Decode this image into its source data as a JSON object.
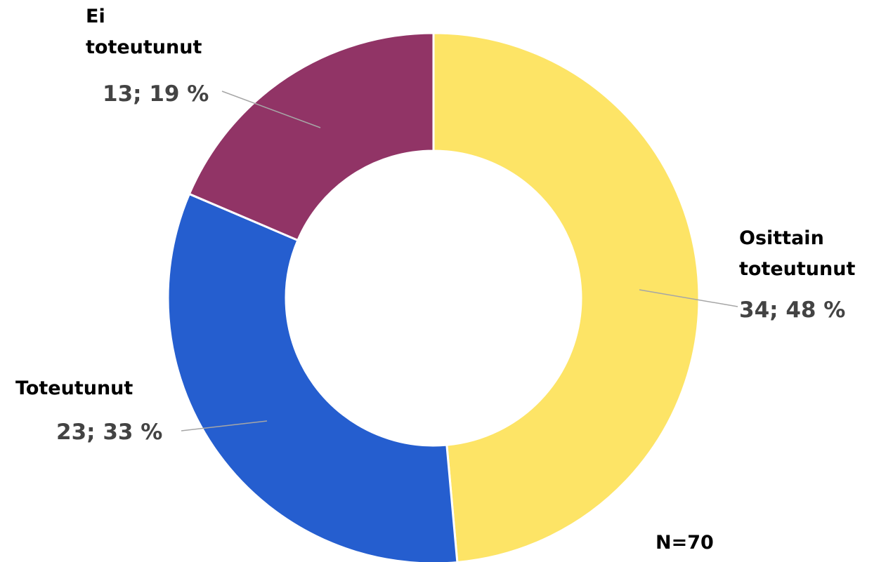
{
  "chart_data": {
    "type": "donut",
    "categories": [
      "Osittain toteutunut",
      "Toteutunut",
      "Ei toteutunut"
    ],
    "values": [
      34,
      23,
      13
    ],
    "value_labels": [
      "34; 48 %",
      "23; 33 %",
      "13; 19 %"
    ],
    "colors": [
      "#fde466",
      "#255ecf",
      "#913466"
    ],
    "annotation": "N=70"
  }
}
